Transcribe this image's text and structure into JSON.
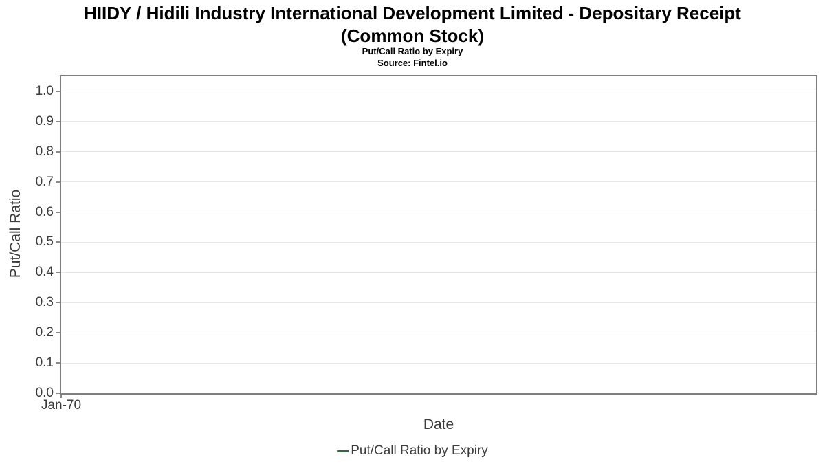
{
  "header": {
    "title_line1": "HIIDY / Hidili Industry International Development Limited - Depositary Receipt",
    "title_line2": "(Common Stock)",
    "subtitle": "Put/Call Ratio by Expiry",
    "source": "Source: Fintel.io"
  },
  "chart_data": {
    "type": "line",
    "title": "HIIDY / Hidili Industry International Development Limited - Depositary Receipt (Common Stock)",
    "subtitle": "Put/Call Ratio by Expiry",
    "source": "Source: Fintel.io",
    "xlabel": "Date",
    "ylabel": "Put/Call Ratio",
    "xticks": [
      "Jan-70"
    ],
    "yticks": [
      "0.0",
      "0.1",
      "0.2",
      "0.3",
      "0.4",
      "0.5",
      "0.6",
      "0.7",
      "0.8",
      "0.9",
      "1.0"
    ],
    "ylim": [
      0,
      1.05
    ],
    "grid": "horizontal-only",
    "legend_position": "bottom-center",
    "series": [
      {
        "name": "Put/Call Ratio by Expiry",
        "color": "#2e6b3e",
        "x": [],
        "values": []
      }
    ],
    "note": "empty chart - no data points plotted"
  },
  "legend": {
    "items": [
      {
        "label": "Put/Call Ratio by Expiry",
        "color": "#2e6b3e"
      }
    ]
  },
  "colors": {
    "plot_border": "#7e7e7e",
    "gridline": "#e6e6e6",
    "tick_mark": "#8a8a8a",
    "axis_text": "#3c3c3c",
    "title_text": "#000000",
    "series_green": "#2e6b3e"
  }
}
